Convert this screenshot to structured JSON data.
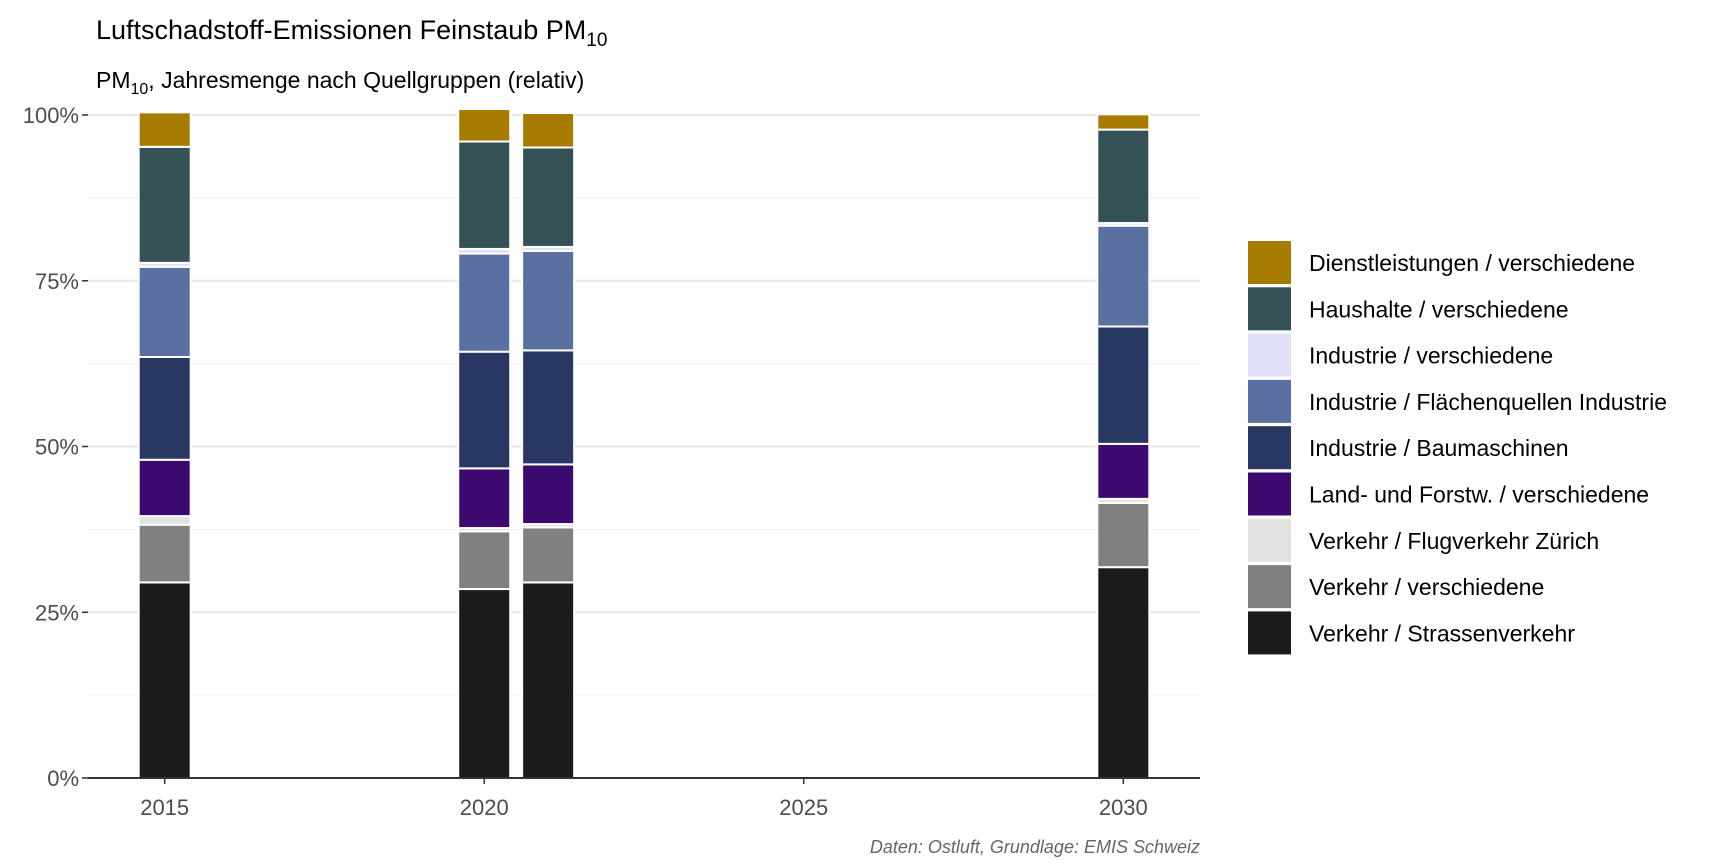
{
  "chart_data": {
    "type": "bar",
    "stacked": true,
    "normalized": true,
    "title": "Luftschadstoff-Emissionen Feinstaub PM",
    "title_subscript": "10",
    "subtitle_prefix": "PM",
    "subtitle_subscript": "10",
    "subtitle_rest": ", Jahresmenge nach Quellgruppen (relativ)",
    "caption": "Daten: Ostluft, Grundlage: EMIS Schweiz",
    "x_ticks": [
      "2015",
      "2020",
      "2025",
      "2030"
    ],
    "x_tick_values": [
      2015,
      2020,
      2025,
      2030
    ],
    "xlim": [
      2013.8,
      2031.2
    ],
    "ylim": [
      0,
      1
    ],
    "y_ticks": [
      "0%",
      "25%",
      "50%",
      "75%",
      "100%"
    ],
    "y_tick_values": [
      0,
      0.25,
      0.5,
      0.75,
      1.0
    ],
    "grid": true,
    "legend_position": "right",
    "x": [
      2015,
      2020,
      2021,
      2030
    ],
    "series": [
      {
        "name": "Verkehr / Strassenverkehr",
        "color": "#1b1b1b",
        "values": [
          0.295,
          0.285,
          0.295,
          0.318
        ]
      },
      {
        "name": "Verkehr / verschiedene",
        "color": "#808080",
        "values": [
          0.087,
          0.087,
          0.083,
          0.097
        ]
      },
      {
        "name": "Verkehr / Flugverkehr Zürich",
        "color": "#e2e2e2",
        "values": [
          0.013,
          0.005,
          0.005,
          0.006
        ]
      },
      {
        "name": "Land- und Forstw. / verschiedene",
        "color": "#3c0a6e",
        "values": [
          0.085,
          0.09,
          0.09,
          0.083
        ]
      },
      {
        "name": "Industrie / Baumaschinen",
        "color": "#283862",
        "values": [
          0.155,
          0.176,
          0.172,
          0.177
        ]
      },
      {
        "name": "Industrie / Flächenquellen Industrie",
        "color": "#5a70a0",
        "values": [
          0.136,
          0.148,
          0.15,
          0.152
        ]
      },
      {
        "name": "Industrie / verschiedene",
        "color": "#e0e0f6",
        "values": [
          0.006,
          0.007,
          0.006,
          0.004
        ]
      },
      {
        "name": "Haushalte / verschiedene",
        "color": "#345155",
        "values": [
          0.175,
          0.162,
          0.15,
          0.141
        ]
      },
      {
        "name": "Dienstleistungen / verschiedene",
        "color": "#a67c00",
        "values": [
          0.052,
          0.049,
          0.052,
          0.023
        ]
      }
    ]
  }
}
